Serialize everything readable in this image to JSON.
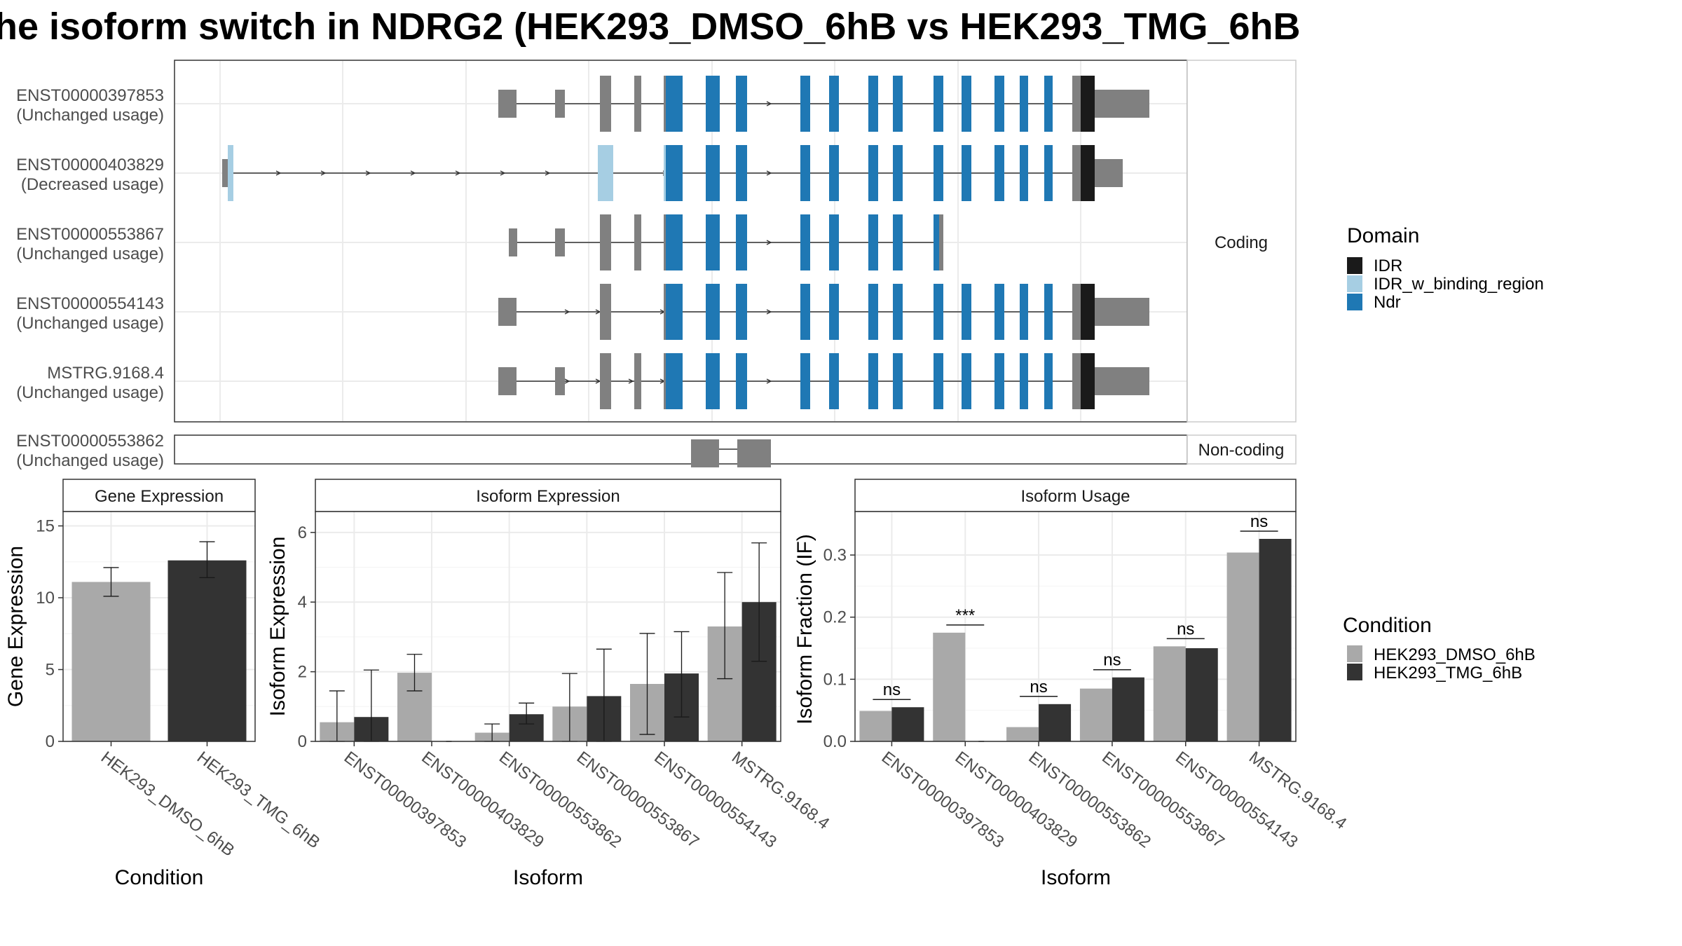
{
  "title": "he isoform switch in NDRG2 (HEK293_DMSO_6hB vs HEK293_TMG_6hB",
  "colors": {
    "IDR": "#1a1a1a",
    "IDR_w_binding_region": "#a6cee3",
    "Ndr": "#1f78b4",
    "exon": "#808080",
    "dmso": "#a9a9a9",
    "tmg": "#333333"
  },
  "structure": {
    "facets": [
      "Coding",
      "Non-coding"
    ],
    "transcripts": [
      {
        "id": "ENST00000397853",
        "status": "(Unchanged usage)",
        "coding": true
      },
      {
        "id": "ENST00000403829",
        "status": "(Decreased usage)",
        "coding": true
      },
      {
        "id": "ENST00000553867",
        "status": "(Unchanged usage)",
        "coding": true
      },
      {
        "id": "ENST00000554143",
        "status": "(Unchanged usage)",
        "coding": true
      },
      {
        "id": "MSTRG.9168.4",
        "status": "(Unchanged usage)",
        "coding": true
      },
      {
        "id": "ENST00000553862",
        "status": "(Unchanged usage)",
        "coding": false
      }
    ],
    "domain_legend": {
      "title": "Domain",
      "items": [
        {
          "label": "IDR",
          "color": "#1a1a1a"
        },
        {
          "label": "IDR_w_binding_region",
          "color": "#a6cee3"
        },
        {
          "label": "Ndr",
          "color": "#1f78b4"
        }
      ]
    }
  },
  "condition_legend": {
    "title": "Condition",
    "items": [
      {
        "label": "HEK293_DMSO_6hB",
        "color": "#a9a9a9"
      },
      {
        "label": "HEK293_TMG_6hB",
        "color": "#333333"
      }
    ]
  },
  "chart_data": [
    {
      "type": "bar",
      "title": "Gene Expression",
      "xlabel": "Condition",
      "ylabel": "Gene Expression",
      "ylim": [
        0,
        16
      ],
      "yticks": [
        0,
        5,
        10,
        15
      ],
      "categories": [
        "HEK293_DMSO_6hB",
        "HEK293_TMG_6hB"
      ],
      "values": [
        11.1,
        12.6
      ],
      "error_low": [
        10.1,
        11.4
      ],
      "error_high": [
        12.1,
        13.9
      ]
    },
    {
      "type": "bar",
      "title": "Isoform Expression",
      "xlabel": "Isoform",
      "ylabel": "Isoform Expression",
      "ylim": [
        0,
        6.6
      ],
      "yticks": [
        0,
        2,
        4,
        6
      ],
      "categories": [
        "ENST00000397853",
        "ENST00000403829",
        "ENST00000553862",
        "ENST00000553867",
        "ENST00000554143",
        "MSTRG.9168.4"
      ],
      "series": [
        {
          "name": "HEK293_DMSO_6hB",
          "values": [
            0.55,
            1.97,
            0.25,
            1.0,
            1.65,
            3.3
          ],
          "error_low": [
            0.0,
            1.45,
            0.0,
            0.0,
            0.2,
            1.8
          ],
          "error_high": [
            1.45,
            2.5,
            0.5,
            1.95,
            3.1,
            4.85
          ]
        },
        {
          "name": "HEK293_TMG_6hB",
          "values": [
            0.7,
            0.0,
            0.78,
            1.3,
            1.95,
            4.0
          ],
          "error_low": [
            0.0,
            0.0,
            0.5,
            0.0,
            0.7,
            2.3
          ],
          "error_high": [
            2.05,
            0.0,
            1.1,
            2.65,
            3.15,
            5.7
          ]
        }
      ]
    },
    {
      "type": "bar",
      "title": "Isoform Usage",
      "xlabel": "Isoform",
      "ylabel": "Isoform Fraction (IF)",
      "ylim": [
        0,
        0.37
      ],
      "yticks": [
        "0.0",
        "0.1",
        "0.2",
        "0.3"
      ],
      "categories": [
        "ENST00000397853",
        "ENST00000403829",
        "ENST00000553862",
        "ENST00000553867",
        "ENST00000554143",
        "MSTRG.9168.4"
      ],
      "series": [
        {
          "name": "HEK293_DMSO_6hB",
          "values": [
            0.049,
            0.175,
            0.023,
            0.085,
            0.153,
            0.304
          ]
        },
        {
          "name": "HEK293_TMG_6hB",
          "values": [
            0.055,
            0.0,
            0.06,
            0.103,
            0.15,
            0.326
          ]
        }
      ],
      "significance": [
        "ns",
        "***",
        "ns",
        "ns",
        "ns",
        "ns"
      ]
    }
  ]
}
